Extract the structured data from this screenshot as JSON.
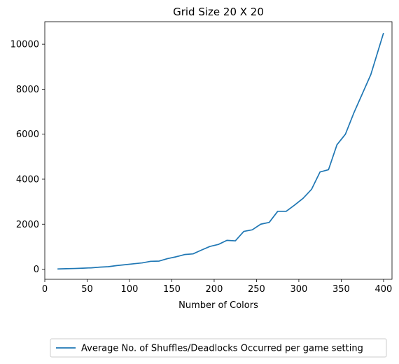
{
  "chart_data": {
    "type": "line",
    "title": "Grid Size 20 X 20",
    "xlabel": "Number of Colors",
    "ylabel": "",
    "xlim": [
      0,
      410
    ],
    "ylim": [
      -450,
      11000
    ],
    "xticks": [
      0,
      50,
      100,
      150,
      200,
      250,
      300,
      350,
      400
    ],
    "yticks": [
      0,
      2000,
      4000,
      6000,
      8000,
      10000
    ],
    "grid": false,
    "legend_position": "bottom-center, below plot",
    "series": [
      {
        "name": "Average No. of Shuffles/Deadlocks Occurred per game setting",
        "color": "#1f77b4",
        "x": [
          15,
          25,
          35,
          45,
          55,
          65,
          75,
          85,
          95,
          105,
          115,
          125,
          135,
          145,
          155,
          165,
          175,
          185,
          195,
          205,
          215,
          225,
          235,
          245,
          255,
          265,
          275,
          285,
          295,
          305,
          315,
          325,
          335,
          345,
          355,
          365,
          375,
          385,
          400
        ],
        "y": [
          10,
          20,
          30,
          45,
          60,
          90,
          110,
          160,
          200,
          240,
          280,
          350,
          360,
          470,
          550,
          650,
          680,
          850,
          1010,
          1100,
          1280,
          1260,
          1680,
          1750,
          2000,
          2080,
          2570,
          2570,
          2850,
          3150,
          3550,
          4320,
          4420,
          5530,
          6000,
          6950,
          7800,
          8650,
          10500
        ]
      }
    ]
  }
}
